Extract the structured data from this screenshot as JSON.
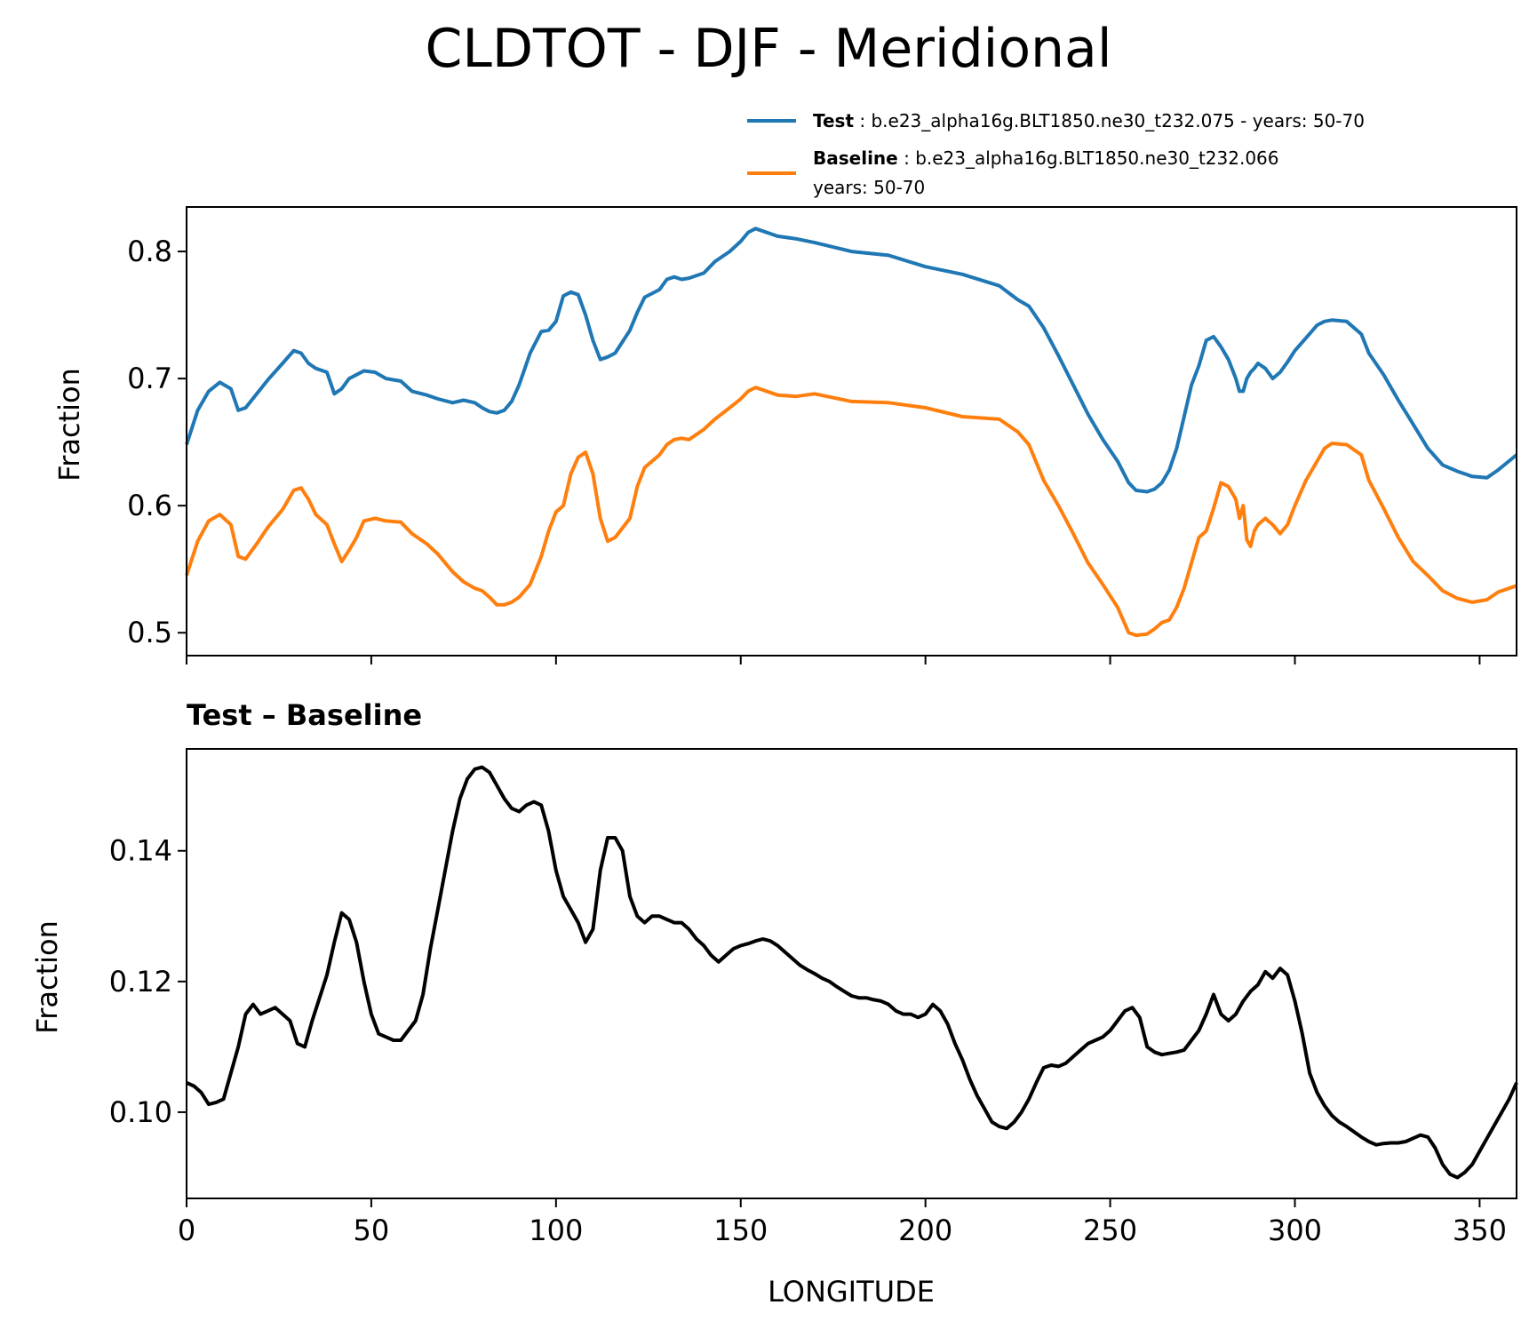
{
  "figure": {
    "title": "CLDTOT - DJF - Meridional"
  },
  "legend": {
    "test_label": "Test",
    "test_text": "b.e23_alpha16g.BLT1850.ne30_t232.075 - years: 50-70",
    "baseline_label": "Baseline",
    "baseline_text_line1": "b.e23_alpha16g.BLT1850.ne30_t232.066",
    "baseline_text_line2": "years: 50-70"
  },
  "colors": {
    "test": "#1f77b4",
    "baseline": "#ff7f0e",
    "diff": "#000000",
    "axes": "#000000"
  },
  "chart_data": [
    {
      "type": "line",
      "title": "",
      "xlabel": "",
      "ylabel": "Fraction",
      "xlim": [
        0,
        360
      ],
      "ylim": [
        0.482,
        0.835
      ],
      "xticks": [
        0,
        50,
        100,
        150,
        200,
        250,
        300,
        350
      ],
      "yticks": [
        0.5,
        0.6,
        0.7,
        0.8
      ],
      "ytick_labels": [
        "0.5",
        "0.6",
        "0.7",
        "0.8"
      ],
      "x": [
        0,
        3,
        6,
        9,
        12,
        14,
        16,
        19,
        22,
        26,
        29,
        31,
        33,
        35,
        38,
        40,
        42,
        44,
        46,
        48,
        51,
        54,
        58,
        61,
        65,
        68,
        72,
        75,
        78,
        80,
        82,
        84,
        86,
        88,
        90,
        93,
        96,
        98,
        100,
        102,
        104,
        106,
        108,
        110,
        112,
        114,
        116,
        120,
        122,
        124,
        128,
        130,
        132,
        134,
        136,
        140,
        143,
        147,
        150,
        152,
        154,
        160,
        165,
        170,
        180,
        190,
        200,
        210,
        220,
        225,
        228,
        232,
        236,
        240,
        244,
        248,
        252,
        255,
        257,
        260,
        262,
        264,
        266,
        268,
        270,
        272,
        274,
        276,
        278,
        280,
        282,
        284,
        285,
        286,
        287,
        288,
        289,
        290,
        292,
        294,
        296,
        298,
        300,
        303,
        306,
        308,
        310,
        314,
        318,
        320,
        324,
        328,
        332,
        336,
        340,
        344,
        348,
        352,
        355,
        360
      ],
      "series": [
        {
          "name": "Test",
          "values": [
            0.648,
            0.675,
            0.69,
            0.697,
            0.692,
            0.675,
            0.677,
            0.688,
            0.699,
            0.712,
            0.722,
            0.72,
            0.712,
            0.708,
            0.705,
            0.688,
            0.692,
            0.7,
            0.703,
            0.706,
            0.705,
            0.7,
            0.698,
            0.69,
            0.687,
            0.684,
            0.681,
            0.683,
            0.681,
            0.677,
            0.674,
            0.673,
            0.675,
            0.682,
            0.695,
            0.72,
            0.737,
            0.738,
            0.745,
            0.765,
            0.768,
            0.766,
            0.75,
            0.73,
            0.715,
            0.717,
            0.72,
            0.738,
            0.752,
            0.764,
            0.77,
            0.778,
            0.78,
            0.778,
            0.779,
            0.783,
            0.792,
            0.8,
            0.808,
            0.815,
            0.818,
            0.812,
            0.81,
            0.807,
            0.8,
            0.797,
            0.788,
            0.782,
            0.773,
            0.762,
            0.757,
            0.74,
            0.718,
            0.695,
            0.672,
            0.652,
            0.635,
            0.618,
            0.612,
            0.611,
            0.613,
            0.618,
            0.628,
            0.645,
            0.67,
            0.695,
            0.71,
            0.73,
            0.733,
            0.725,
            0.715,
            0.7,
            0.69,
            0.69,
            0.7,
            0.705,
            0.708,
            0.712,
            0.708,
            0.7,
            0.705,
            0.713,
            0.722,
            0.732,
            0.742,
            0.745,
            0.746,
            0.745,
            0.735,
            0.72,
            0.703,
            0.683,
            0.664,
            0.645,
            0.632,
            0.627,
            0.623,
            0.622,
            0.628,
            0.64
          ]
        },
        {
          "name": "Baseline",
          "values": [
            0.545,
            0.572,
            0.588,
            0.593,
            0.585,
            0.56,
            0.558,
            0.57,
            0.583,
            0.597,
            0.612,
            0.614,
            0.605,
            0.593,
            0.585,
            0.57,
            0.556,
            0.565,
            0.575,
            0.588,
            0.59,
            0.588,
            0.587,
            0.578,
            0.57,
            0.562,
            0.548,
            0.54,
            0.535,
            0.533,
            0.528,
            0.522,
            0.522,
            0.524,
            0.528,
            0.538,
            0.56,
            0.58,
            0.595,
            0.6,
            0.625,
            0.638,
            0.642,
            0.625,
            0.59,
            0.572,
            0.575,
            0.59,
            0.615,
            0.63,
            0.64,
            0.648,
            0.652,
            0.653,
            0.652,
            0.66,
            0.668,
            0.677,
            0.684,
            0.69,
            0.693,
            0.687,
            0.686,
            0.688,
            0.682,
            0.681,
            0.677,
            0.67,
            0.668,
            0.658,
            0.648,
            0.62,
            0.6,
            0.578,
            0.555,
            0.538,
            0.52,
            0.5,
            0.498,
            0.499,
            0.503,
            0.508,
            0.51,
            0.52,
            0.535,
            0.555,
            0.575,
            0.58,
            0.598,
            0.618,
            0.615,
            0.605,
            0.59,
            0.6,
            0.573,
            0.568,
            0.58,
            0.585,
            0.59,
            0.585,
            0.578,
            0.585,
            0.6,
            0.62,
            0.635,
            0.645,
            0.649,
            0.648,
            0.64,
            0.62,
            0.598,
            0.575,
            0.556,
            0.545,
            0.533,
            0.527,
            0.524,
            0.526,
            0.532,
            0.537
          ]
        }
      ]
    },
    {
      "type": "line",
      "title": "Test – Baseline",
      "xlabel": "LONGITUDE",
      "ylabel": "Fraction",
      "xlim": [
        0,
        360
      ],
      "ylim": [
        0.0868,
        0.1556
      ],
      "xticks": [
        0,
        50,
        100,
        150,
        200,
        250,
        300,
        350
      ],
      "xtick_labels": [
        "0",
        "50",
        "100",
        "150",
        "200",
        "250",
        "300",
        "350"
      ],
      "yticks": [
        0.1,
        0.12,
        0.14
      ],
      "ytick_labels": [
        "0.10",
        "0.12",
        "0.14"
      ],
      "x": [
        0,
        2,
        4,
        6,
        8,
        10,
        12,
        14,
        16,
        18,
        20,
        22,
        24,
        26,
        28,
        30,
        32,
        34,
        36,
        38,
        40,
        42,
        44,
        46,
        48,
        50,
        52,
        54,
        56,
        58,
        60,
        62,
        64,
        66,
        68,
        70,
        72,
        74,
        76,
        78,
        80,
        82,
        84,
        86,
        88,
        90,
        92,
        94,
        96,
        98,
        100,
        102,
        104,
        106,
        108,
        110,
        112,
        114,
        116,
        118,
        120,
        122,
        124,
        126,
        128,
        130,
        132,
        134,
        136,
        138,
        140,
        142,
        144,
        146,
        148,
        150,
        152,
        154,
        156,
        158,
        160,
        162,
        164,
        166,
        168,
        170,
        172,
        174,
        176,
        178,
        180,
        182,
        184,
        186,
        188,
        190,
        192,
        194,
        196,
        198,
        200,
        202,
        204,
        206,
        208,
        210,
        212,
        214,
        216,
        218,
        220,
        222,
        224,
        226,
        228,
        230,
        232,
        234,
        236,
        238,
        240,
        242,
        244,
        246,
        248,
        250,
        252,
        254,
        256,
        258,
        260,
        262,
        264,
        266,
        268,
        270,
        272,
        274,
        276,
        278,
        280,
        282,
        284,
        286,
        288,
        290,
        292,
        294,
        296,
        298,
        300,
        302,
        304,
        306,
        308,
        310,
        312,
        314,
        316,
        318,
        320,
        322,
        324,
        326,
        328,
        330,
        332,
        334,
        336,
        338,
        340,
        342,
        344,
        346,
        348,
        350,
        352,
        354,
        356,
        358,
        360
      ],
      "series": [
        {
          "name": "Test – Baseline",
          "values": [
            0.1045,
            0.104,
            0.103,
            0.1012,
            0.1015,
            0.102,
            0.106,
            0.11,
            0.115,
            0.1165,
            0.115,
            0.1155,
            0.116,
            0.115,
            0.114,
            0.1105,
            0.11,
            0.114,
            0.1175,
            0.121,
            0.126,
            0.1305,
            0.1295,
            0.126,
            0.12,
            0.115,
            0.112,
            0.1115,
            0.111,
            0.111,
            0.1125,
            0.114,
            0.118,
            0.125,
            0.131,
            0.137,
            0.143,
            0.148,
            0.151,
            0.1525,
            0.1528,
            0.152,
            0.15,
            0.148,
            0.1465,
            0.146,
            0.147,
            0.1475,
            0.147,
            0.143,
            0.137,
            0.133,
            0.131,
            0.129,
            0.126,
            0.128,
            0.137,
            0.142,
            0.142,
            0.14,
            0.133,
            0.13,
            0.129,
            0.13,
            0.13,
            0.1295,
            0.129,
            0.129,
            0.128,
            0.1265,
            0.1255,
            0.124,
            0.123,
            0.124,
            0.125,
            0.1255,
            0.1258,
            0.1262,
            0.1265,
            0.1262,
            0.1255,
            0.1245,
            0.1235,
            0.1225,
            0.1218,
            0.1212,
            0.1205,
            0.12,
            0.1192,
            0.1185,
            0.1178,
            0.1175,
            0.1175,
            0.1172,
            0.117,
            0.1165,
            0.1155,
            0.115,
            0.115,
            0.1145,
            0.115,
            0.1165,
            0.1155,
            0.1135,
            0.1105,
            0.108,
            0.105,
            0.1025,
            0.1005,
            0.0985,
            0.0978,
            0.0975,
            0.0985,
            0.1,
            0.102,
            0.1045,
            0.1068,
            0.1072,
            0.107,
            0.1075,
            0.1085,
            0.1095,
            0.1105,
            0.111,
            0.1115,
            0.1125,
            0.114,
            0.1155,
            0.116,
            0.1145,
            0.11,
            0.1092,
            0.1088,
            0.109,
            0.1092,
            0.1095,
            0.111,
            0.1125,
            0.115,
            0.118,
            0.115,
            0.114,
            0.115,
            0.117,
            0.1185,
            0.1195,
            0.1215,
            0.1205,
            0.122,
            0.121,
            0.117,
            0.112,
            0.106,
            0.103,
            0.101,
            0.0995,
            0.0985,
            0.0978,
            0.097,
            0.0962,
            0.0955,
            0.095,
            0.0952,
            0.0953,
            0.0953,
            0.0955,
            0.096,
            0.0965,
            0.0962,
            0.0945,
            0.092,
            0.0905,
            0.09,
            0.0908,
            0.092,
            0.094,
            0.096,
            0.098,
            0.1,
            0.102,
            0.1045
          ]
        }
      ]
    }
  ]
}
